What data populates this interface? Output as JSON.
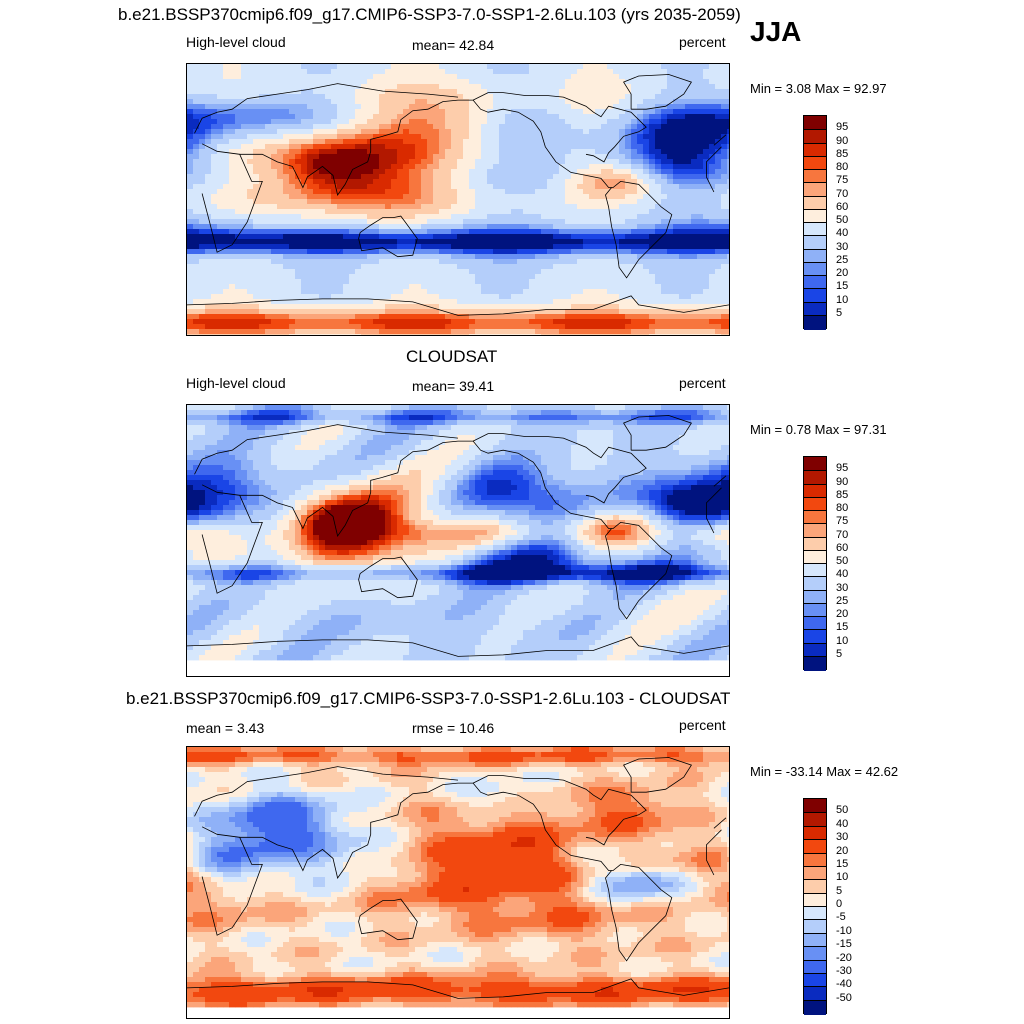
{
  "season": "JJA",
  "panels": [
    {
      "title": "b.e21.BSSP370cmip6.f09_g17.CMIP6-SSP3-7.0-SSP1-2.6Lu.103 (yrs 2035-2059)",
      "left_label": "High-level cloud",
      "center_label": "mean=  42.84",
      "units": "percent",
      "minmax": "Min =   3.08 Max =  92.97",
      "kind": "model"
    },
    {
      "title": "CLOUDSAT",
      "left_label": "High-level cloud",
      "center_label": "mean=  39.41",
      "units": "percent",
      "minmax": "Min =   0.78 Max =  97.31",
      "kind": "obs"
    },
    {
      "title": "b.e21.BSSP370cmip6.f09_g17.CMIP6-SSP3-7.0-SSP1-2.6Lu.103 - CLOUDSAT",
      "left_label": "mean =   3.43",
      "center_label": "rmse =  10.46",
      "units": "percent",
      "minmax": "Min = -33.14 Max =  42.62",
      "kind": "diff"
    }
  ],
  "colorbars": {
    "absolute": {
      "labels": [
        "95",
        "90",
        "85",
        "80",
        "75",
        "70",
        "60",
        "50",
        "40",
        "30",
        "25",
        "20",
        "15",
        "10",
        "5"
      ],
      "colors": [
        "#7f0000",
        "#b21800",
        "#d92a00",
        "#f2480f",
        "#f7763e",
        "#fba57a",
        "#fdcdab",
        "#feeedd",
        "#d6e7fc",
        "#b4cefa",
        "#8fb1f7",
        "#6890f4",
        "#3f68ef",
        "#1a45e6",
        "#0a2bc0",
        "#00137f"
      ]
    },
    "difference": {
      "labels": [
        "50",
        "40",
        "30",
        "20",
        "15",
        "10",
        "5",
        "0",
        "-5",
        "-10",
        "-15",
        "-20",
        "-30",
        "-40",
        "-50"
      ],
      "colors": [
        "#7f0000",
        "#b21800",
        "#d92a00",
        "#f2480f",
        "#f7763e",
        "#fba57a",
        "#fdcdab",
        "#feeedd",
        "#d6e7fc",
        "#b4cefa",
        "#8fb1f7",
        "#6890f4",
        "#3f68ef",
        "#1a45e6",
        "#0a2bc0",
        "#00137f"
      ]
    }
  }
}
